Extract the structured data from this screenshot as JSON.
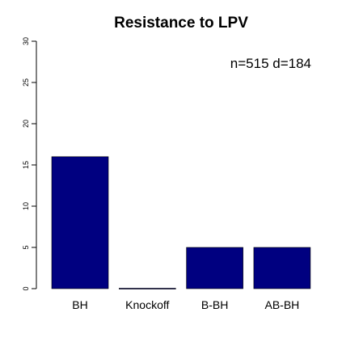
{
  "chart_data": {
    "type": "bar",
    "title": "Resistance to LPV",
    "annotation": "n=515 d=184",
    "categories": [
      "BH",
      "Knockoff",
      "B-BH",
      "AB-BH"
    ],
    "values": [
      16,
      0,
      5,
      5
    ],
    "ylim": [
      0,
      30
    ],
    "yticks": [
      "0",
      "5",
      "10",
      "15",
      "20",
      "25",
      "30"
    ],
    "xlabel": "",
    "ylabel": "",
    "bar_color": "#000080",
    "grid": false,
    "legend": "none"
  }
}
